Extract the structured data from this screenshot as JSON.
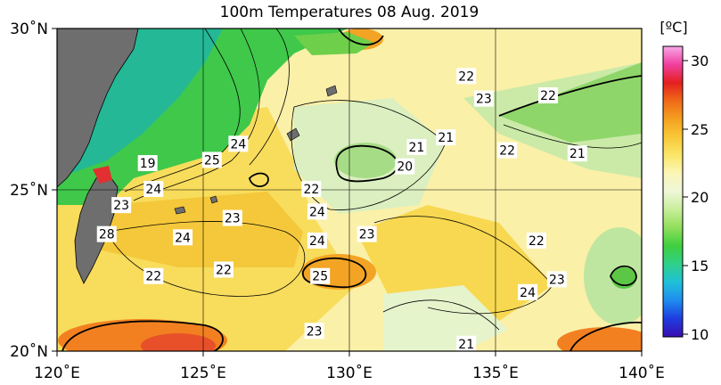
{
  "title": "100m Temperatures  08 Aug. 2019",
  "colorbar": {
    "unit": "[ºC]",
    "ticks": [
      "30",
      "25",
      "20",
      "15",
      "10"
    ],
    "colors": [
      "#3a0fb0",
      "#1f3ce0",
      "#1f8cf0",
      "#20c0d8",
      "#2fd08a",
      "#3fcf3f",
      "#8fde5a",
      "#c8ee9a",
      "#eef7d8",
      "#fbf6b8",
      "#fbe66a",
      "#f8c838",
      "#f4a020",
      "#f06a18",
      "#e42020",
      "#f040a0",
      "#f8a8e8"
    ]
  },
  "axes": {
    "x_ticks": [
      "120˚E",
      "125˚E",
      "130˚E",
      "135˚E",
      "140˚E"
    ],
    "y_ticks": [
      "30˚N",
      "25˚N",
      "20˚N"
    ]
  },
  "contour_labels": [
    {
      "text": "22",
      "lon": 134.0,
      "lat": 28.5
    },
    {
      "text": "23",
      "lon": 134.6,
      "lat": 27.8
    },
    {
      "text": "22",
      "lon": 136.8,
      "lat": 27.9
    },
    {
      "text": "21",
      "lon": 133.3,
      "lat": 26.6
    },
    {
      "text": "21",
      "lon": 132.3,
      "lat": 26.3
    },
    {
      "text": "20",
      "lon": 131.9,
      "lat": 25.7
    },
    {
      "text": "22",
      "lon": 135.4,
      "lat": 26.2
    },
    {
      "text": "21",
      "lon": 137.8,
      "lat": 26.1
    },
    {
      "text": "24",
      "lon": 126.2,
      "lat": 26.4
    },
    {
      "text": "25",
      "lon": 125.3,
      "lat": 25.9
    },
    {
      "text": "19",
      "lon": 123.1,
      "lat": 25.8
    },
    {
      "text": "24",
      "lon": 123.3,
      "lat": 25.0
    },
    {
      "text": "22",
      "lon": 128.7,
      "lat": 25.0
    },
    {
      "text": "23",
      "lon": 122.2,
      "lat": 24.5
    },
    {
      "text": "23",
      "lon": 126.0,
      "lat": 24.1
    },
    {
      "text": "24",
      "lon": 128.9,
      "lat": 24.3
    },
    {
      "text": "23",
      "lon": 130.6,
      "lat": 23.6
    },
    {
      "text": "24",
      "lon": 124.3,
      "lat": 23.5
    },
    {
      "text": "24",
      "lon": 128.9,
      "lat": 23.4
    },
    {
      "text": "28",
      "lon": 121.7,
      "lat": 23.6
    },
    {
      "text": "22",
      "lon": 136.4,
      "lat": 23.4
    },
    {
      "text": "22",
      "lon": 123.3,
      "lat": 22.3
    },
    {
      "text": "22",
      "lon": 125.7,
      "lat": 22.5
    },
    {
      "text": "25",
      "lon": 129.0,
      "lat": 22.3
    },
    {
      "text": "23",
      "lon": 137.1,
      "lat": 22.2
    },
    {
      "text": "24",
      "lon": 136.1,
      "lat": 21.8
    },
    {
      "text": "23",
      "lon": 128.8,
      "lat": 20.6
    },
    {
      "text": "21",
      "lon": 134.0,
      "lat": 20.2
    }
  ]
}
